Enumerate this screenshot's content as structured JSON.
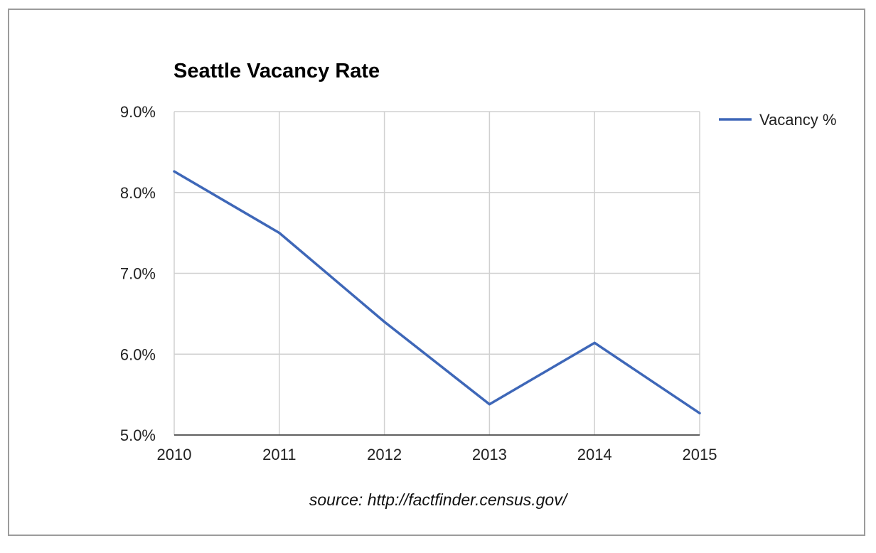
{
  "chart_data": {
    "type": "line",
    "title": "Seattle Vacancy Rate",
    "categories": [
      "2010",
      "2011",
      "2012",
      "2013",
      "2014",
      "2015"
    ],
    "series": [
      {
        "name": "Vacancy %",
        "color": "#3e67b8",
        "values": [
          8.26,
          7.5,
          6.4,
          5.38,
          6.14,
          5.27
        ]
      }
    ],
    "ylim": [
      5.0,
      9.0
    ],
    "yticks": [
      5.0,
      6.0,
      7.0,
      8.0,
      9.0
    ],
    "ytick_labels": [
      "5.0%",
      "6.0%",
      "7.0%",
      "8.0%",
      "9.0%"
    ],
    "grid": true,
    "legend_position": "top-right",
    "xlabel": "",
    "ylabel": ""
  },
  "source_note": "source: http://factfinder.census.gov/"
}
